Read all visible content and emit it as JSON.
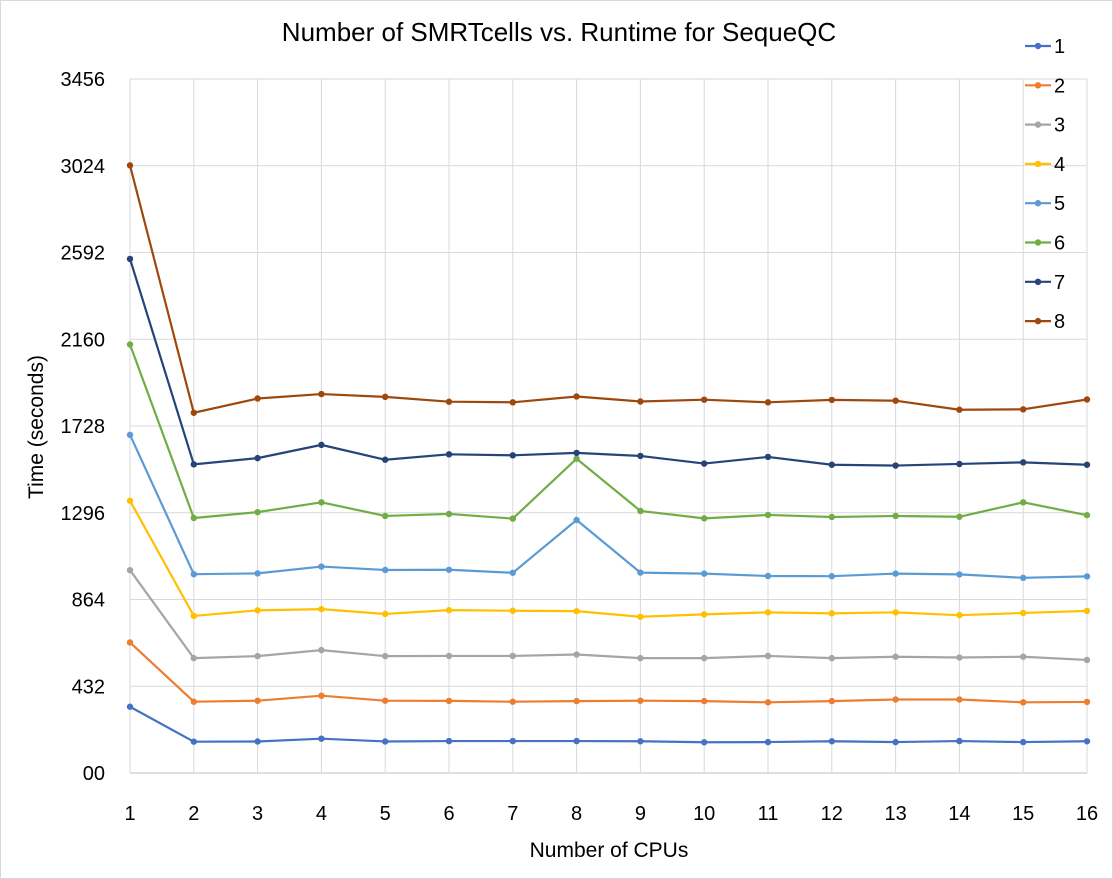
{
  "chart_data": {
    "type": "line",
    "title": "Number of SMRTcells vs. Runtime for SequeQC",
    "xlabel": "Number of CPUs",
    "ylabel": "Time (seconds)",
    "x": [
      1,
      2,
      3,
      4,
      5,
      6,
      7,
      8,
      9,
      10,
      11,
      12,
      13,
      14,
      15,
      16
    ],
    "ylim": [
      0,
      3456
    ],
    "y_ticks": [
      0,
      432,
      864,
      1296,
      1728,
      2160,
      2592,
      3024,
      3456
    ],
    "y_tick_labels": [
      "00",
      "432",
      "864",
      "1296",
      "1728",
      "2160",
      "2592",
      "3024",
      "3456"
    ],
    "grid": "vertical and horizontal",
    "legend_position": "right",
    "series": [
      {
        "name": "1",
        "color": "#4472C4",
        "values": [
          330,
          156,
          157,
          171,
          157,
          159,
          159,
          159,
          158,
          153,
          154,
          158,
          154,
          159,
          154,
          158
        ]
      },
      {
        "name": "2",
        "color": "#ED7D31",
        "values": [
          650,
          355,
          360,
          385,
          360,
          359,
          355,
          358,
          360,
          358,
          352,
          358,
          366,
          366,
          352,
          354
        ]
      },
      {
        "name": "3",
        "color": "#A5A5A5",
        "values": [
          1010,
          572,
          582,
          612,
          582,
          583,
          583,
          590,
          572,
          572,
          583,
          572,
          579,
          575,
          579,
          563
        ]
      },
      {
        "name": "4",
        "color": "#FFC000",
        "values": [
          1356,
          782,
          810,
          816,
          792,
          811,
          808,
          806,
          778,
          790,
          800,
          795,
          800,
          786,
          797,
          807
        ]
      },
      {
        "name": "5",
        "color": "#5B9BD5",
        "values": [
          1684,
          990,
          994,
          1028,
          1011,
          1012,
          997,
          1260,
          998,
          993,
          981,
          980,
          993,
          989,
          972,
          979
        ]
      },
      {
        "name": "6",
        "color": "#70AD47",
        "values": [
          2134,
          1270,
          1299,
          1348,
          1280,
          1290,
          1267,
          1565,
          1305,
          1268,
          1285,
          1275,
          1280,
          1276,
          1348,
          1284
        ]
      },
      {
        "name": "7",
        "color": "#264478",
        "values": [
          2560,
          1537,
          1568,
          1634,
          1560,
          1587,
          1582,
          1594,
          1579,
          1541,
          1574,
          1535,
          1531,
          1539,
          1547,
          1535
        ]
      },
      {
        "name": "8",
        "color": "#9E480E",
        "values": [
          3026,
          1794,
          1865,
          1887,
          1873,
          1849,
          1846,
          1875,
          1850,
          1859,
          1846,
          1858,
          1854,
          1809,
          1811,
          1860
        ]
      }
    ]
  }
}
